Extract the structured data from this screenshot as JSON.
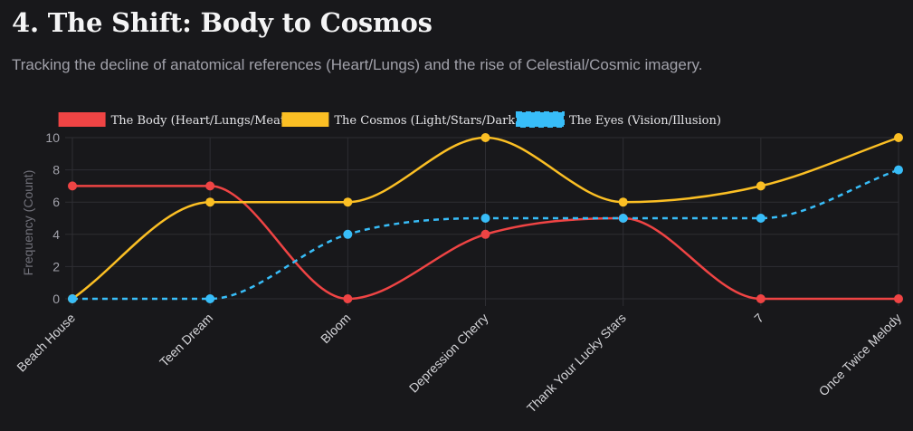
{
  "header": {
    "title": "4. The Shift: Body to Cosmos",
    "subtitle": "Tracking the decline of anatomical references (Heart/Lungs) and the rise of Celestial/Cosmic imagery."
  },
  "chart_data": {
    "type": "line",
    "title": "4. The Shift: Body to Cosmos",
    "subtitle": "Tracking the decline of anatomical references (Heart/Lungs) and the rise of Celestial/Cosmic imagery.",
    "categories": [
      "Beach House",
      "Teen Dream",
      "Bloom",
      "Depression Cherry",
      "Thank Your Lucky Stars",
      "7",
      "Once Twice Melody"
    ],
    "series": [
      {
        "name": "The Body (Heart/Lungs/Meat)",
        "values": [
          7,
          7,
          0,
          4,
          5,
          0,
          0
        ],
        "color": "#ef4444",
        "dashed": false
      },
      {
        "name": "The Cosmos (Light/Stars/Dark)",
        "values": [
          0,
          6,
          6,
          10,
          6,
          7,
          10
        ],
        "color": "#fbbf24",
        "dashed": false
      },
      {
        "name": "The Eyes (Vision/Illusion)",
        "values": [
          0,
          0,
          4,
          5,
          5,
          5,
          8
        ],
        "color": "#38bdf8",
        "dashed": true
      }
    ],
    "xlabel": "",
    "ylabel": "Frequency (Count)",
    "ylim": [
      0,
      10
    ],
    "yticks": [
      0,
      2,
      4,
      6,
      8,
      10
    ],
    "grid": true,
    "legend_position": "top-center"
  }
}
